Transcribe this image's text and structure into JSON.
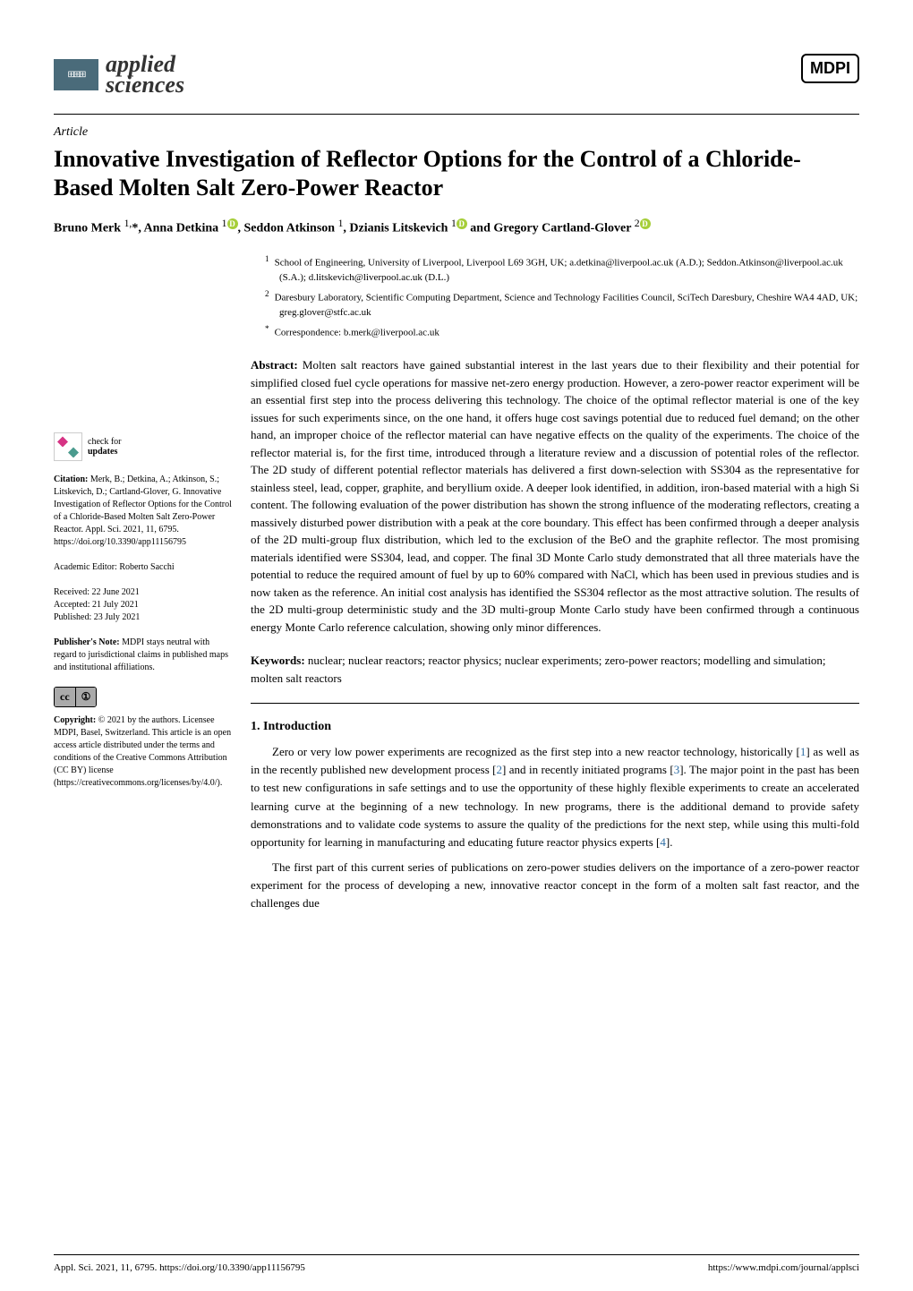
{
  "journal": {
    "name_line1": "applied",
    "name_line2": "sciences",
    "publisher": "MDPI"
  },
  "article": {
    "type": "Article",
    "title": "Innovative Investigation of Reflector Options for the Control of a Chloride-Based Molten Salt Zero-Power Reactor",
    "authors": "Bruno Merk ¹·*, Anna Detkina ¹, Seddon Atkinson ¹, Dzianis Litskevich ¹ and Gregory Cartland-Glover ²"
  },
  "affiliations": {
    "a1": "School of Engineering, University of Liverpool, Liverpool L69 3GH, UK; a.detkina@liverpool.ac.uk (A.D.); Seddon.Atkinson@liverpool.ac.uk (S.A.); d.litskevich@liverpool.ac.uk (D.L.)",
    "a2": "Daresbury Laboratory, Scientific Computing Department, Science and Technology Facilities Council, SciTech Daresbury, Cheshire WA4 4AD, UK; greg.glover@stfc.ac.uk",
    "corr": "Correspondence: b.merk@liverpool.ac.uk"
  },
  "abstract": {
    "label": "Abstract:",
    "text": "Molten salt reactors have gained substantial interest in the last years due to their flexibility and their potential for simplified closed fuel cycle operations for massive net-zero energy production. However, a zero-power reactor experiment will be an essential first step into the process delivering this technology. The choice of the optimal reflector material is one of the key issues for such experiments since, on the one hand, it offers huge cost savings potential due to reduced fuel demand; on the other hand, an improper choice of the reflector material can have negative effects on the quality of the experiments. The choice of the reflector material is, for the first time, introduced through a literature review and a discussion of potential roles of the reflector. The 2D study of different potential reflector materials has delivered a first down-selection with SS304 as the representative for stainless steel, lead, copper, graphite, and beryllium oxide. A deeper look identified, in addition, iron-based material with a high Si content. The following evaluation of the power distribution has shown the strong influence of the moderating reflectors, creating a massively disturbed power distribution with a peak at the core boundary. This effect has been confirmed through a deeper analysis of the 2D multi-group flux distribution, which led to the exclusion of the BeO and the graphite reflector. The most promising materials identified were SS304, lead, and copper. The final 3D Monte Carlo study demonstrated that all three materials have the potential to reduce the required amount of fuel by up to 60% compared with NaCl, which has been used in previous studies and is now taken as the reference. An initial cost analysis has identified the SS304 reflector as the most attractive solution. The results of the 2D multi-group deterministic study and the 3D multi-group Monte Carlo study have been confirmed through a continuous energy Monte Carlo reference calculation, showing only minor differences."
  },
  "keywords": {
    "label": "Keywords:",
    "text": "nuclear; nuclear reactors; reactor physics; nuclear experiments; zero-power reactors; modelling and simulation; molten salt reactors"
  },
  "sidebar": {
    "check_for": "check for",
    "updates": "updates",
    "citation_label": "Citation:",
    "citation": "Merk, B.; Detkina, A.; Atkinson, S.; Litskevich, D.; Cartland-Glover, G. Innovative Investigation of Reflector Options for the Control of a Chloride-Based Molten Salt Zero-Power Reactor. Appl. Sci. 2021, 11, 6795. https://doi.org/10.3390/app11156795",
    "editor_label": "Academic Editor:",
    "editor": "Roberto Sacchi",
    "received": "Received: 22 June 2021",
    "accepted": "Accepted: 21 July 2021",
    "published": "Published: 23 July 2021",
    "note_label": "Publisher's Note:",
    "note": "MDPI stays neutral with regard to jurisdictional claims in published maps and institutional affiliations.",
    "copyright_label": "Copyright:",
    "copyright": "© 2021 by the authors. Licensee MDPI, Basel, Switzerland. This article is an open access article distributed under the terms and conditions of the Creative Commons Attribution (CC BY) license (https://creativecommons.org/licenses/by/4.0/)."
  },
  "sections": {
    "intro_title": "1. Introduction",
    "intro_p1": "Zero or very low power experiments are recognized as the first step into a new reactor technology, historically [1] as well as in the recently published new development process [2] and in recently initiated programs [3]. The major point in the past has been to test new configurations in safe settings and to use the opportunity of these highly flexible experiments to create an accelerated learning curve at the beginning of a new technology. In new programs, there is the additional demand to provide safety demonstrations and to validate code systems to assure the quality of the predictions for the next step, while using this multi-fold opportunity for learning in manufacturing and educating future reactor physics experts [4].",
    "intro_p2": "The first part of this current series of publications on zero-power studies delivers on the importance of a zero-power reactor experiment for the process of developing a new, innovative reactor concept in the form of a molten salt fast reactor, and the challenges due"
  },
  "footer": {
    "left": "Appl. Sci. 2021, 11, 6795. https://doi.org/10.3390/app11156795",
    "right": "https://www.mdpi.com/journal/applsci"
  },
  "colors": {
    "journal_icon_bg": "#4a6b7a",
    "orcid_bg": "#a6ce39",
    "ref_color": "#2e6da4",
    "text": "#000000",
    "bg": "#ffffff"
  },
  "typography": {
    "title_fontsize": 26,
    "body_fontsize": 13,
    "sidebar_fontsize": 10,
    "affiliation_fontsize": 11,
    "footer_fontsize": 11
  }
}
